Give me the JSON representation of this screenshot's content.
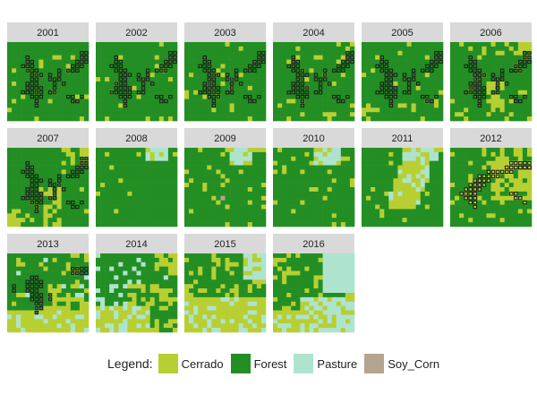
{
  "chart_data": {
    "type": "heatmap",
    "colors": {
      "Cerrado": "#b8cf32",
      "Forest": "#238e23",
      "Pasture": "#aee4ce",
      "Soy_Corn": "#b5a48f",
      "strip": "#d9d9d9",
      "outline": "#1a1a1a"
    },
    "legend": {
      "title": "Legend:",
      "entries": [
        "Cerrado",
        "Forest",
        "Pasture",
        "Soy_Corn"
      ]
    },
    "panels": [
      {
        "title": "2001"
      },
      {
        "title": "2002"
      },
      {
        "title": "2003"
      },
      {
        "title": "2004"
      },
      {
        "title": "2005"
      },
      {
        "title": "2006"
      },
      {
        "title": "2007"
      },
      {
        "title": "2008"
      },
      {
        "title": "2009"
      },
      {
        "title": "2010"
      },
      {
        "title": "2011"
      },
      {
        "title": "2012"
      },
      {
        "title": "2013"
      },
      {
        "title": "2014"
      },
      {
        "title": "2015"
      },
      {
        "title": "2016"
      }
    ]
  }
}
